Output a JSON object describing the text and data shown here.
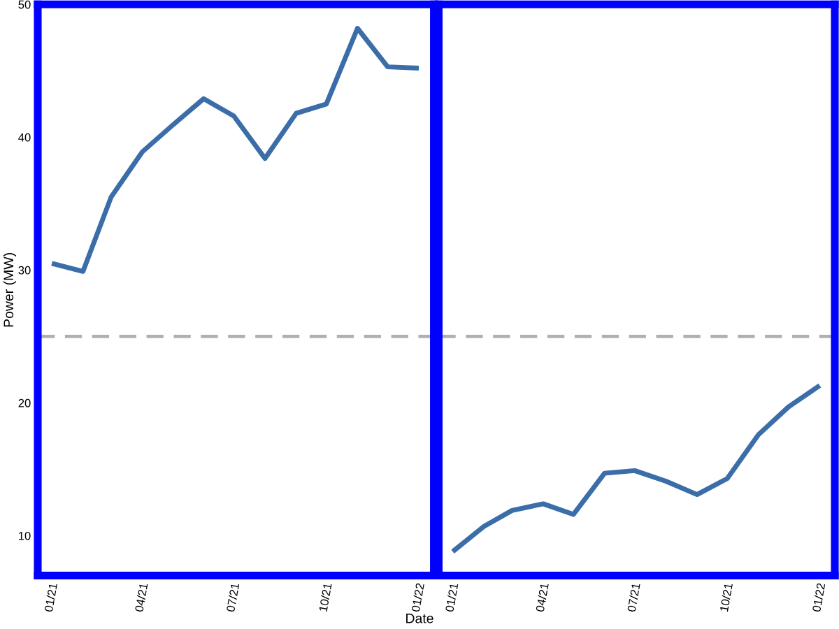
{
  "chart_data": [
    {
      "type": "line",
      "ylabel": "Power (MW)",
      "xlabel": "Date",
      "x": [
        "2021-01",
        "2021-02",
        "2021-03",
        "2021-04",
        "2021-05",
        "2021-06",
        "2021-07",
        "2021-08",
        "2021-09",
        "2021-10",
        "2021-11",
        "2021-12",
        "2022-01"
      ],
      "series": [
        {
          "color": "#3b6ea8",
          "values": [
            30.5,
            29.9,
            35.5,
            38.9,
            40.9,
            42.9,
            41.6,
            38.4,
            41.8,
            42.5,
            48.2,
            45.3,
            45.2
          ]
        }
      ],
      "xlim": [
        "2020-12-18",
        "2022-01-16"
      ],
      "ylim": [
        7,
        50
      ],
      "xticks": [
        {
          "value": "2021-01-01",
          "label": "01/21"
        },
        {
          "value": "2021-04-01",
          "label": "04/21"
        },
        {
          "value": "2021-07-01",
          "label": "07/21"
        },
        {
          "value": "2021-10-01",
          "label": "10/21"
        },
        {
          "value": "2022-01-01",
          "label": "01/22"
        }
      ],
      "yticks": [
        10,
        20,
        30,
        40,
        50
      ],
      "ref_lines": [
        {
          "axis": "y",
          "value": 25,
          "color": "#b0b0b0",
          "line_style": "dashed"
        }
      ],
      "grid": false,
      "line_style": "solid"
    },
    {
      "type": "line",
      "x": [
        "2021-01",
        "2021-02",
        "2021-03",
        "2021-04",
        "2021-05",
        "2021-06",
        "2021-07",
        "2021-08",
        "2021-09",
        "2021-10",
        "2021-11",
        "2021-12",
        "2022-01"
      ],
      "series": [
        {
          "color": "#3b6ea8",
          "values": [
            8.8,
            10.7,
            11.9,
            12.4,
            11.6,
            14.7,
            14.9,
            14.1,
            13.1,
            14.3,
            17.6,
            19.7,
            21.3
          ]
        }
      ],
      "xlim": [
        "2020-12-18",
        "2022-01-16"
      ],
      "ylim": [
        7,
        50
      ],
      "xticks": [
        {
          "value": "2021-01-01",
          "label": "01/21"
        },
        {
          "value": "2021-04-01",
          "label": "04/21"
        },
        {
          "value": "2021-07-01",
          "label": "07/21"
        },
        {
          "value": "2021-10-01",
          "label": "10/21"
        },
        {
          "value": "2022-01-01",
          "label": "01/22"
        }
      ],
      "yticks": [
        10,
        20,
        30,
        40,
        50
      ],
      "tick_labels": "x",
      "ref_lines": [
        {
          "axis": "y",
          "value": 25,
          "color": "#b0b0b0",
          "line_style": "dashed"
        }
      ],
      "grid": false,
      "line_style": "solid"
    }
  ]
}
